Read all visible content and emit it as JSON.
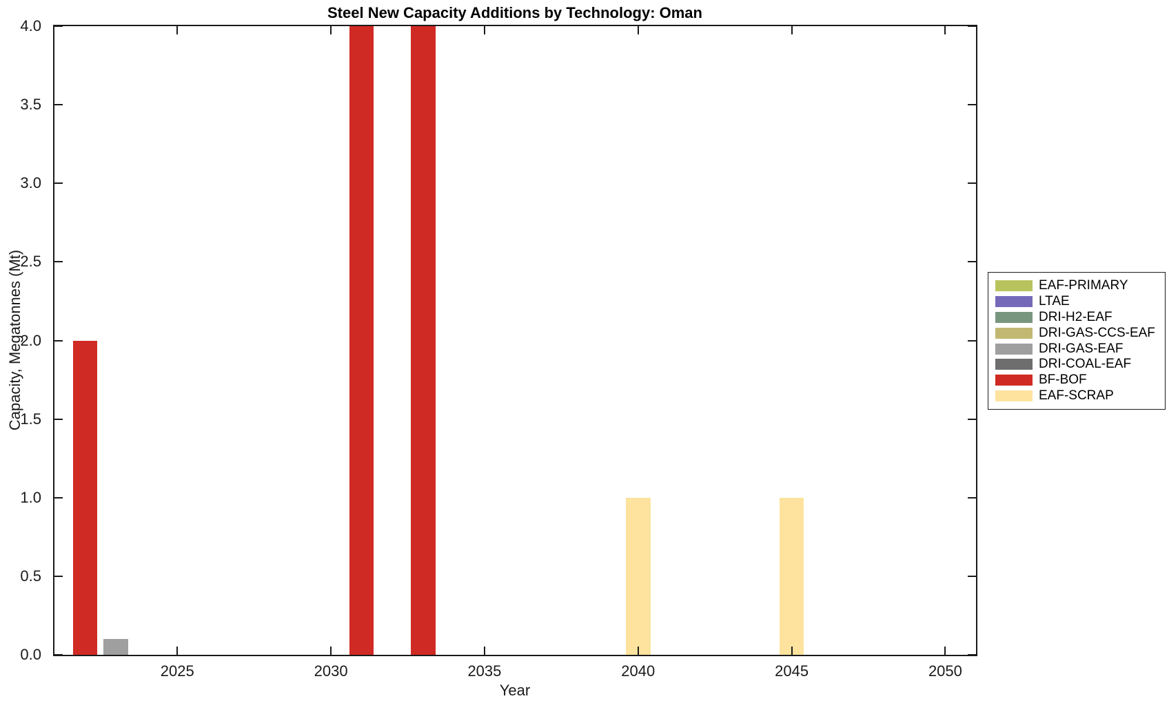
{
  "chart_data": {
    "type": "bar",
    "title": "Steel New Capacity Additions by Technology: Oman",
    "xlabel": "Year",
    "ylabel": "Capacity, Megatonnes (Mt)",
    "xlim": [
      2021,
      2051
    ],
    "ylim": [
      0,
      4
    ],
    "xticks": [
      2025,
      2030,
      2035,
      2040,
      2045,
      2050
    ],
    "yticks": [
      0.0,
      0.5,
      1.0,
      1.5,
      2.0,
      2.5,
      3.0,
      3.5,
      4.0
    ],
    "ytick_labels": [
      "0.0",
      "0.5",
      "1.0",
      "1.5",
      "2.0",
      "2.5",
      "3.0",
      "3.5",
      "4.0"
    ],
    "bar_width_years": 0.8,
    "grid": false,
    "legend_position": "outside-right",
    "axis_color": "#1a1a1a",
    "background_color": "#ffffff",
    "series": [
      {
        "name": "EAF-PRIMARY",
        "color": "#b9c35e",
        "points": []
      },
      {
        "name": "LTAE",
        "color": "#7569ba",
        "points": []
      },
      {
        "name": "DRI-H2-EAF",
        "color": "#78967e",
        "points": []
      },
      {
        "name": "DRI-GAS-CCS-EAF",
        "color": "#c2b873",
        "points": []
      },
      {
        "name": "DRI-GAS-EAF",
        "color": "#9f9f9f",
        "points": [
          {
            "x": 2023,
            "y": 0.1
          }
        ]
      },
      {
        "name": "DRI-COAL-EAF",
        "color": "#6e6e6e",
        "points": []
      },
      {
        "name": "BF-BOF",
        "color": "#d02a24",
        "points": [
          {
            "x": 2022,
            "y": 2.0
          },
          {
            "x": 2031,
            "y": 4.0
          },
          {
            "x": 2033,
            "y": 4.0
          }
        ]
      },
      {
        "name": "EAF-SCRAP",
        "color": "#fde39e",
        "points": [
          {
            "x": 2040,
            "y": 1.0
          },
          {
            "x": 2045,
            "y": 1.0
          }
        ]
      }
    ]
  }
}
